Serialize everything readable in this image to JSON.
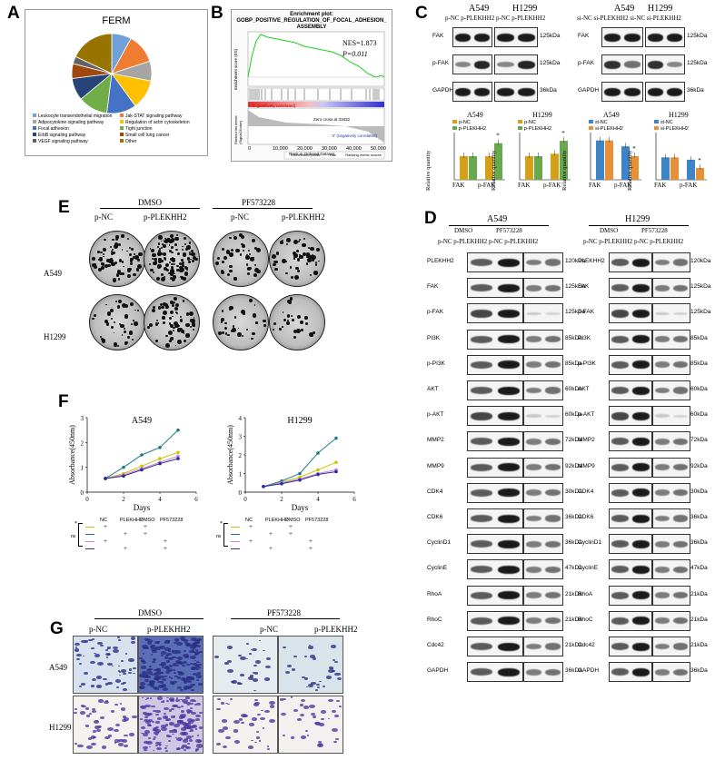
{
  "panel_labels": {
    "a": "A",
    "b": "B",
    "c": "C",
    "d": "D",
    "e": "E",
    "f": "F",
    "g": "G"
  },
  "panel_a": {
    "title": "FERM",
    "slices": [
      {
        "label": "Leukocyte transendothelial migration",
        "color": "#6fa0d8",
        "value": 8
      },
      {
        "label": "Jak-STAT signaling pathway",
        "color": "#ee7d31",
        "value": 12
      },
      {
        "label": "Adipocytokine signaling pathway",
        "color": "#a5a5a5",
        "value": 8
      },
      {
        "label": "Regulation of actin cytoskeleton",
        "color": "#ffc000",
        "value": 12
      },
      {
        "label": "Focal adhesion",
        "color": "#4472c4",
        "value": 12
      },
      {
        "label": "Tight junction",
        "color": "#70ad47",
        "value": 12
      },
      {
        "label": "ErbB signaling pathway",
        "color": "#264478",
        "value": 9
      },
      {
        "label": "Small cell lung cancer",
        "color": "#9e480e",
        "value": 6
      },
      {
        "label": "VEGF signaling pathway",
        "color": "#636363",
        "value": 3
      },
      {
        "label": "Other",
        "color": "#997300",
        "value": 18
      }
    ]
  },
  "panel_b": {
    "title1": "Enrichment plot:",
    "title2": "GOBP_POSITIVE_REGULATION_OF_FOCAL_ADHESION_",
    "title3": "ASSEMBLY",
    "nes": "NES=1.873",
    "p": "P=0.011",
    "ylabel_top": "Enrichment score (ES)",
    "ylabel_bottom": "Ranked list metric (Signal2Noise)",
    "xlabel": "Rank in Ordered Dataset",
    "pos_label": "'1' (positively correlated)",
    "neg_label": "'2' (negatively correlated)",
    "zero_cross": "Zero cross at 31832",
    "legend": [
      "Enrichment profile",
      "Hits",
      "Ranking metric scores"
    ],
    "xticks": [
      "0",
      "10,000",
      "20,000",
      "30,000",
      "40,000",
      "50,000"
    ],
    "yticks": [
      "0.5",
      "0.4",
      "0.3",
      "0.2",
      "0.1",
      "0.0",
      "-0.1"
    ]
  },
  "panel_c": {
    "left_cells": [
      "A549",
      "H1299"
    ],
    "left_groups": "p-NC p-PLEKHH2 p-NC p-PLEKHH2",
    "right_cells": [
      "A549",
      "H1299"
    ],
    "right_groups": "si-NC si-PLEKHH2 si-NC si-PLEKHH2",
    "rows": [
      {
        "name": "FAK",
        "kda": "125kDa"
      },
      {
        "name": "p-FAK",
        "kda": "125kDa"
      },
      {
        "name": "GAPDH",
        "kda": "36kDa"
      }
    ],
    "ylabel": "Relative quantity",
    "legend_over": [
      "p-NC",
      "p-PLEKHH2"
    ],
    "legend_si": [
      "si-NC",
      "si-PLEKHH2"
    ],
    "xcats": [
      "FAK",
      "p-FAK"
    ]
  },
  "panel_e": {
    "groups": [
      "DMSO",
      "PF573228"
    ],
    "cols": [
      "p-NC",
      "p-PLEKHH2",
      "p-NC",
      "p-PLEKHH2"
    ],
    "rows": [
      "A549",
      "H1299"
    ]
  },
  "panel_d": {
    "cells": [
      "A549",
      "H1299"
    ],
    "treat": [
      "DMSO",
      "PF573228"
    ],
    "cols": "p-NC p-PLEKHH2 p-NC p-PLEKHH2",
    "rows": [
      {
        "name": "PLEKHH2",
        "kda": "120kDa"
      },
      {
        "name": "FAK",
        "kda": "125kDa"
      },
      {
        "name": "p-FAK",
        "kda": "125kDa"
      },
      {
        "name": "PI3K",
        "kda": "85kDa"
      },
      {
        "name": "p-PI3K",
        "kda": "85kDa"
      },
      {
        "name": "AKT",
        "kda": "60kDa"
      },
      {
        "name": "p-AKT",
        "kda": "60kDa"
      },
      {
        "name": "MMP2",
        "kda": "72kDa"
      },
      {
        "name": "MMP9",
        "kda": "92kDa"
      },
      {
        "name": "CDK4",
        "kda": "30kDa"
      },
      {
        "name": "CDK6",
        "kda": "36kDa"
      },
      {
        "name": "CyclinD1",
        "kda": "36kDa"
      },
      {
        "name": "CyclinE",
        "kda": "47kDa"
      },
      {
        "name": "RhoA",
        "kda": "21kDa"
      },
      {
        "name": "RhoC",
        "kda": "21kDa"
      },
      {
        "name": "Cdc42",
        "kda": "21kDa"
      },
      {
        "name": "GAPDH",
        "kda": "36kDa"
      }
    ]
  },
  "panel_f": {
    "ylabel": "Absorbance(450nm)",
    "xlabel": "Days",
    "table_header": [
      "NC",
      "PLEKHH2",
      "DMSO",
      "PF573228"
    ],
    "ns": "ns",
    "star": "*"
  },
  "panel_g": {
    "groups": [
      "DMSO",
      "PF573228"
    ],
    "cols": [
      "p-NC",
      "p-PLEKHH2",
      "p-NC",
      "p-PLEKHH2"
    ],
    "rows": [
      "A549",
      "H1299"
    ]
  },
  "chart_data": [
    {
      "type": "line",
      "title": "A549",
      "xlabel": "Days",
      "ylabel": "Absorbance(450nm)",
      "x": [
        1,
        2,
        3,
        4,
        5
      ],
      "xlim": [
        0,
        6
      ],
      "ylim": [
        0,
        3
      ],
      "series": [
        {
          "color": "#c8c800",
          "values": [
            0.55,
            0.75,
            1.05,
            1.35,
            1.6
          ]
        },
        {
          "color": "#1f7a8c",
          "values": [
            0.55,
            1.0,
            1.5,
            1.8,
            2.5
          ]
        },
        {
          "color": "#d080d0",
          "values": [
            0.55,
            0.7,
            0.95,
            1.2,
            1.45
          ]
        },
        {
          "color": "#2a2a9a",
          "values": [
            0.55,
            0.65,
            0.9,
            1.15,
            1.35
          ]
        }
      ]
    },
    {
      "type": "line",
      "title": "H1299",
      "xlabel": "Days",
      "ylabel": "Absorbance(450nm)",
      "x": [
        1,
        2,
        3,
        4,
        5
      ],
      "xlim": [
        0,
        6
      ],
      "ylim": [
        0,
        4
      ],
      "series": [
        {
          "color": "#c8c800",
          "values": [
            0.3,
            0.55,
            0.8,
            1.2,
            1.6
          ]
        },
        {
          "color": "#1f7a8c",
          "values": [
            0.3,
            0.6,
            1.0,
            2.1,
            2.9
          ]
        },
        {
          "color": "#d080d0",
          "values": [
            0.3,
            0.5,
            0.7,
            1.0,
            1.2
          ]
        },
        {
          "color": "#2a2a9a",
          "values": [
            0.3,
            0.45,
            0.65,
            0.95,
            1.1
          ]
        }
      ]
    },
    {
      "type": "bar",
      "title": "A549",
      "ylabel": "Relative quantity",
      "categories": [
        "FAK",
        "p-FAK"
      ],
      "series": [
        {
          "name": "p-NC",
          "values": [
            1.0,
            1.0
          ]
        },
        {
          "name": "p-PLEKHH2",
          "values": [
            1.0,
            1.55
          ]
        }
      ],
      "ylim": [
        0,
        2
      ]
    },
    {
      "type": "bar",
      "title": "H1299",
      "ylabel": "Relative quantity",
      "categories": [
        "FAK",
        "p-FAK"
      ],
      "series": [
        {
          "name": "p-NC",
          "values": [
            1.0,
            1.1
          ]
        },
        {
          "name": "p-PLEKHH2",
          "values": [
            1.0,
            1.65
          ]
        }
      ],
      "ylim": [
        0,
        2
      ]
    },
    {
      "type": "bar",
      "title": "A549",
      "ylabel": "Relative quantity",
      "categories": [
        "FAK",
        "p-FAK"
      ],
      "series": [
        {
          "name": "si-NC",
          "values": [
            1.0,
            0.85
          ]
        },
        {
          "name": "si-PLEKHH2",
          "values": [
            1.0,
            0.6
          ]
        }
      ],
      "ylim": [
        0,
        1.2
      ]
    },
    {
      "type": "bar",
      "title": "H1299",
      "ylabel": "Relative quantity",
      "categories": [
        "FAK",
        "p-FAK"
      ],
      "series": [
        {
          "name": "si-NC",
          "values": [
            0.95,
            0.85
          ]
        },
        {
          "name": "si-PLEKHH2",
          "values": [
            0.95,
            0.5
          ]
        }
      ],
      "ylim": [
        0,
        2
      ]
    }
  ]
}
